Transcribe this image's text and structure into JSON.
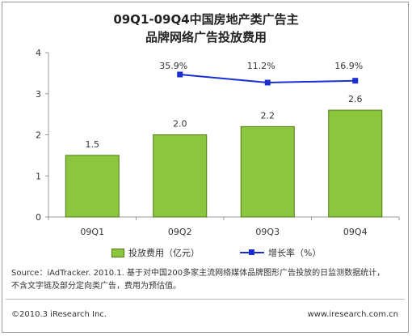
{
  "title": {
    "line1": "09Q1-09Q4中国房地产类广告主",
    "line2": "品牌网络广告投放费用"
  },
  "source": {
    "line1": "Source：iAdTracker. 2010.1. 基于对中国200多家主流网络媒体品牌图形广告投放的日监测数据统计，",
    "line2": "不含文字链及部分定向类广告，费用为预估值。"
  },
  "footer": {
    "copyright": "©2010.3 iResearch Inc.",
    "website": "www.iresearch.com.cn"
  },
  "colors": {
    "bar_fill": "#8cc63f",
    "bar_stroke": "#4e7a14",
    "line": "#1a2fd1",
    "axis": "#999999"
  },
  "chart_data": {
    "type": "bar",
    "categories": [
      "09Q1",
      "09Q2",
      "09Q3",
      "09Q4"
    ],
    "series": [
      {
        "name": "投放费用（亿元）",
        "type": "bar",
        "values": [
          1.5,
          2.0,
          2.2,
          2.6
        ],
        "labels": [
          "1.5",
          "2.0",
          "2.2",
          "2.6"
        ]
      },
      {
        "name": "增长率（%）",
        "type": "line",
        "values": [
          null,
          35.9,
          11.2,
          16.9
        ],
        "labels": [
          "",
          "35.9%",
          "11.2%",
          "16.9%"
        ]
      }
    ],
    "ylim": [
      0,
      4
    ],
    "yticks": [
      0,
      1,
      2,
      3,
      4
    ],
    "xlabel": "",
    "ylabel": "",
    "grid": false,
    "legend_position": "bottom"
  }
}
